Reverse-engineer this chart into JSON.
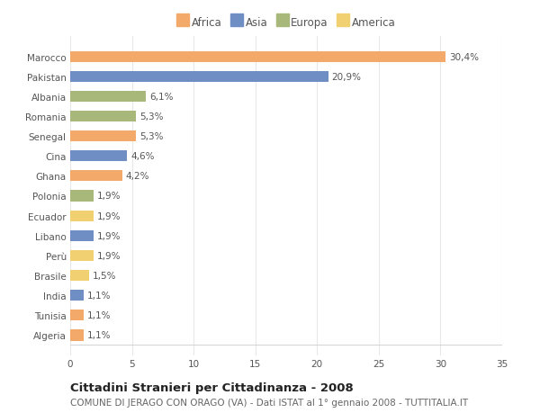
{
  "categories": [
    "Algeria",
    "Tunisia",
    "India",
    "Brasile",
    "Perù",
    "Libano",
    "Ecuador",
    "Polonia",
    "Ghana",
    "Cina",
    "Senegal",
    "Romania",
    "Albania",
    "Pakistan",
    "Marocco"
  ],
  "values": [
    1.1,
    1.1,
    1.1,
    1.5,
    1.9,
    1.9,
    1.9,
    1.9,
    4.2,
    4.6,
    5.3,
    5.3,
    6.1,
    20.9,
    30.4
  ],
  "continents": [
    "Africa",
    "Africa",
    "Asia",
    "America",
    "America",
    "Asia",
    "America",
    "Europa",
    "Africa",
    "Asia",
    "Africa",
    "Europa",
    "Europa",
    "Asia",
    "Africa"
  ],
  "bar_colors": [
    "#F2A96A",
    "#F2A96A",
    "#6F8EC4",
    "#F0D070",
    "#F0D070",
    "#6F8EC4",
    "#F0D070",
    "#A8B87A",
    "#F2A96A",
    "#6F8EC4",
    "#F2A96A",
    "#A8B87A",
    "#A8B87A",
    "#6F8EC4",
    "#F2A96A"
  ],
  "labels": [
    "1,1%",
    "1,1%",
    "1,1%",
    "1,5%",
    "1,9%",
    "1,9%",
    "1,9%",
    "1,9%",
    "4,2%",
    "4,6%",
    "5,3%",
    "5,3%",
    "6,1%",
    "20,9%",
    "30,4%"
  ],
  "xlim": [
    0,
    35
  ],
  "xticks": [
    0,
    5,
    10,
    15,
    20,
    25,
    30,
    35
  ],
  "title": "Cittadini Stranieri per Cittadinanza - 2008",
  "subtitle": "COMUNE DI JERAGO CON ORAGO (VA) - Dati ISTAT al 1° gennaio 2008 - TUTTITALIA.IT",
  "legend_labels": [
    "Africa",
    "Asia",
    "Europa",
    "America"
  ],
  "legend_colors": [
    "#F2A96A",
    "#6F8EC4",
    "#A8B87A",
    "#F0D070"
  ],
  "background_color": "#FFFFFF",
  "plot_background": "#FFFFFF",
  "grid_color": "#E8E8E8",
  "title_fontsize": 9.5,
  "subtitle_fontsize": 7.5,
  "label_fontsize": 7.5,
  "tick_fontsize": 7.5,
  "legend_fontsize": 8.5
}
